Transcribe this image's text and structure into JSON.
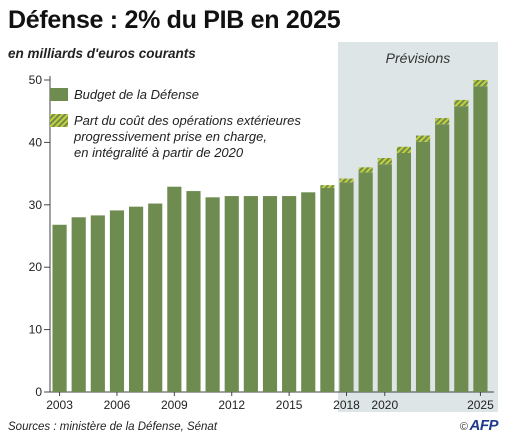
{
  "header": {
    "title": "Défense : 2% du PIB en 2025",
    "subtitle": "en milliards d'euros courants"
  },
  "footer": {
    "source": "Sources : ministère de la Défense, Sénat",
    "logo_text": "AFP",
    "logo_prefix": "©"
  },
  "chart_data": {
    "type": "bar",
    "stacked": true,
    "categories": [
      "2003",
      "2004",
      "2005",
      "2006",
      "2007",
      "2008",
      "2009",
      "2010",
      "2011",
      "2012",
      "2013",
      "2014",
      "2015",
      "2016",
      "2017",
      "2018",
      "2019",
      "2020",
      "2021",
      "2022",
      "2023",
      "2024",
      "2025"
    ],
    "x_tick_labels": [
      {
        "year": "2003",
        "label": "2003"
      },
      {
        "year": "2006",
        "label": "2006"
      },
      {
        "year": "2009",
        "label": "2009"
      },
      {
        "year": "2012",
        "label": "2012"
      },
      {
        "year": "2015",
        "label": "2015"
      },
      {
        "year": "2018",
        "label": "2018"
      },
      {
        "year": "2020",
        "label": "2020"
      },
      {
        "year": "2025",
        "label": "2025"
      }
    ],
    "series": [
      {
        "name": "Budget de la Défense",
        "color": "#6e8b50",
        "values": [
          26.8,
          28.0,
          28.3,
          29.1,
          29.7,
          30.2,
          32.9,
          32.2,
          31.2,
          31.4,
          31.4,
          31.4,
          31.4,
          32.0,
          32.7,
          33.6,
          35.2,
          36.5,
          38.3,
          40.1,
          42.9,
          45.8,
          49.0
        ]
      },
      {
        "name": "Part du coût des opérations extérieures progressivement prise en charge, en intégralité à partir de 2020",
        "legend_lines": [
          "Part du coût des opérations extérieures",
          "progressivement prise en charge,",
          "en intégralité à partir de 2020"
        ],
        "color": "#b7c42a",
        "pattern": "diagonal-stripes",
        "values": [
          0,
          0,
          0,
          0,
          0,
          0,
          0,
          0,
          0,
          0,
          0,
          0,
          0,
          0,
          0.45,
          0.6,
          0.8,
          1.0,
          1.0,
          1.0,
          1.0,
          1.0,
          1.0
        ]
      }
    ],
    "forecast_region": {
      "label": "Prévisions",
      "from": "2018",
      "to": "2025",
      "color": "#dde5e6"
    },
    "ylim": [
      0,
      50
    ],
    "yticks": [
      0,
      10,
      20,
      30,
      40,
      50
    ],
    "grid": false
  }
}
